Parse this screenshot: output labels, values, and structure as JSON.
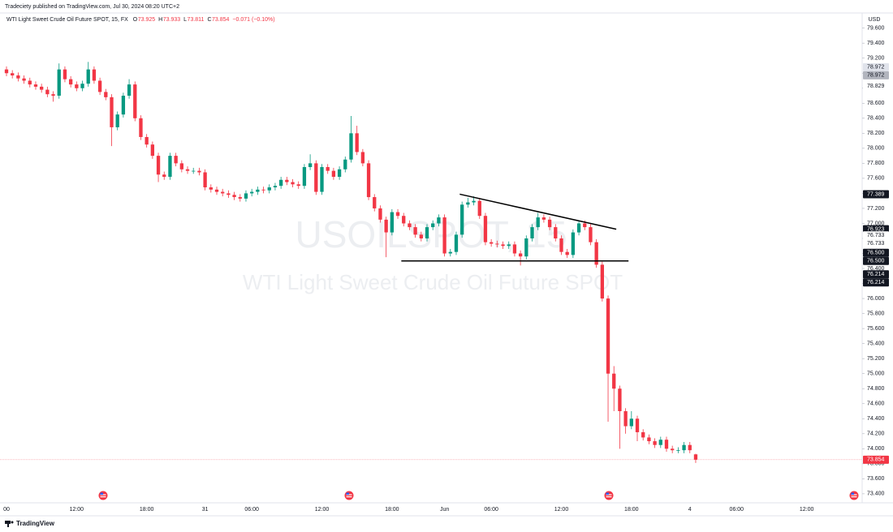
{
  "chart_data": {
    "type": "candlestick",
    "publisher_line": "Tradeciety published on TradingView.com, Jul 30, 2024 08:20 UTC+2",
    "title": "WTI Light Sweet Crude Oil Future SPOT, 15, FX",
    "ohlc_legend": [
      {
        "label": "O",
        "value": 73.925
      },
      {
        "label": "H",
        "value": 73.933
      },
      {
        "label": "L",
        "value": 73.811
      },
      {
        "label": "C",
        "value": 73.854
      }
    ],
    "change_text": "−0.071 (−0.10%)",
    "watermark": [
      "USOILSPOT, 15",
      "WTI Light Sweet Crude Oil Future SPOT"
    ],
    "currency": "USD",
    "brand": "TradingView",
    "up_color": "#089981",
    "down_color": "#f23645",
    "categories": [
      "00",
      null,
      null,
      null,
      null,
      null,
      null,
      null,
      null,
      null,
      null,
      null,
      "12:00",
      null,
      null,
      null,
      null,
      null,
      null,
      null,
      null,
      null,
      null,
      null,
      "18:00",
      null,
      null,
      null,
      null,
      null,
      null,
      null,
      null,
      null,
      "31",
      null,
      null,
      null,
      null,
      null,
      null,
      null,
      "06:00",
      null,
      null,
      null,
      null,
      null,
      null,
      null,
      null,
      null,
      null,
      null,
      "12:00",
      null,
      null,
      null,
      null,
      null,
      null,
      null,
      null,
      null,
      null,
      null,
      "18:00",
      null,
      null,
      null,
      null,
      null,
      null,
      null,
      null,
      "Jun",
      null,
      null,
      null,
      null,
      null,
      null,
      null,
      "06:00",
      null,
      null,
      null,
      null,
      null,
      null,
      null,
      null,
      null,
      null,
      null,
      "12:00",
      null,
      null,
      null,
      null,
      null,
      null,
      null,
      null,
      null,
      null,
      null,
      "18:00",
      null,
      null,
      null,
      null,
      null,
      null,
      null,
      null,
      null,
      "4",
      null,
      null,
      null,
      null,
      null,
      null,
      null,
      "06:00",
      null,
      null,
      null,
      null,
      null,
      null,
      null,
      null,
      null,
      null,
      null,
      "12:00",
      null,
      null,
      null,
      null,
      null,
      null,
      null,
      null,
      null
    ],
    "open": [
      79.05,
      79.0,
      78.97,
      78.93,
      78.9,
      78.85,
      78.82,
      78.78,
      78.72,
      78.7,
      79.05,
      78.92,
      78.85,
      78.8,
      78.86,
      79.05,
      78.9,
      78.75,
      78.68,
      78.28,
      78.45,
      78.7,
      78.85,
      78.4,
      78.15,
      78.05,
      77.9,
      77.65,
      77.62,
      77.9,
      77.8,
      77.72,
      77.7,
      77.7,
      77.68,
      77.48,
      77.45,
      77.42,
      77.4,
      77.38,
      77.35,
      77.33,
      77.4,
      77.42,
      77.45,
      77.44,
      77.48,
      77.5,
      77.58,
      77.55,
      77.52,
      77.5,
      77.75,
      77.8,
      77.42,
      77.75,
      77.7,
      77.62,
      77.72,
      77.85,
      78.2,
      77.95,
      77.8,
      77.35,
      77.2,
      77.05,
      76.88,
      77.15,
      77.1,
      77.0,
      76.95,
      76.85,
      76.8,
      76.95,
      77.0,
      77.08,
      76.6,
      76.62,
      76.85,
      77.25,
      77.28,
      77.3,
      77.1,
      76.75,
      76.73,
      76.72,
      76.7,
      76.72,
      76.6,
      76.56,
      76.8,
      76.95,
      77.08,
      77.05,
      76.95,
      76.8,
      76.62,
      76.58,
      76.88,
      77.0,
      76.95,
      76.75,
      76.45,
      76.0,
      75.0,
      74.8,
      74.5,
      74.3,
      74.4,
      74.22,
      74.15,
      74.1,
      74.05,
      74.12,
      74.0,
      73.98,
      73.98,
      74.05,
      73.925,
      null,
      null,
      null,
      null,
      null,
      null,
      null,
      null,
      null,
      null,
      null,
      null,
      null,
      null,
      null,
      null,
      null,
      null,
      null,
      null,
      null,
      null,
      null,
      null,
      null,
      null,
      null,
      null
    ],
    "high": [
      79.09,
      79.04,
      79.01,
      78.97,
      78.94,
      78.89,
      78.86,
      78.82,
      78.76,
      79.13,
      79.09,
      78.96,
      78.89,
      78.9,
      79.15,
      79.09,
      78.94,
      78.79,
      78.72,
      78.49,
      78.74,
      78.92,
      78.89,
      78.44,
      78.19,
      78.09,
      77.94,
      77.69,
      77.94,
      77.94,
      77.84,
      77.76,
      77.74,
      77.74,
      77.72,
      77.52,
      77.49,
      77.46,
      77.44,
      77.42,
      77.39,
      77.44,
      77.46,
      77.49,
      77.49,
      77.52,
      77.54,
      77.62,
      77.62,
      77.59,
      77.56,
      77.79,
      77.92,
      77.84,
      77.79,
      77.79,
      77.74,
      77.76,
      77.89,
      78.43,
      78.3,
      77.99,
      77.84,
      77.39,
      77.24,
      77.09,
      77.19,
      77.19,
      77.14,
      77.04,
      76.99,
      76.89,
      76.99,
      77.04,
      77.12,
      77.12,
      76.66,
      76.89,
      77.29,
      77.34,
      77.36,
      77.34,
      77.14,
      76.79,
      76.77,
      76.76,
      76.76,
      76.76,
      76.64,
      76.84,
      76.99,
      77.14,
      77.12,
      77.09,
      76.99,
      76.84,
      76.66,
      76.92,
      77.04,
      77.04,
      76.99,
      76.79,
      76.49,
      76.04,
      75.1,
      74.84,
      74.54,
      74.5,
      74.44,
      74.26,
      74.19,
      74.14,
      74.16,
      74.16,
      74.04,
      74.02,
      74.09,
      74.09,
      73.933,
      null,
      null,
      null,
      null,
      null,
      null,
      null,
      null,
      null,
      null,
      null,
      null,
      null,
      null,
      null,
      null,
      null,
      null,
      null,
      null,
      null,
      null,
      null,
      null,
      null,
      null,
      null,
      null
    ],
    "low": [
      78.96,
      78.93,
      78.89,
      78.86,
      78.81,
      78.78,
      78.74,
      78.68,
      78.62,
      78.66,
      78.88,
      78.81,
      78.76,
      78.76,
      78.82,
      78.86,
      78.71,
      78.64,
      78.03,
      78.24,
      78.41,
      78.66,
      78.36,
      78.11,
      78.01,
      77.86,
      77.55,
      77.58,
      77.58,
      77.76,
      77.68,
      77.66,
      77.66,
      77.64,
      77.44,
      77.41,
      77.38,
      77.36,
      77.34,
      77.31,
      77.29,
      77.29,
      77.36,
      77.38,
      77.4,
      77.4,
      77.44,
      77.46,
      77.51,
      77.48,
      77.46,
      77.46,
      77.71,
      77.38,
      77.38,
      77.66,
      77.58,
      77.58,
      77.68,
      77.81,
      77.91,
      77.76,
      77.31,
      77.16,
      77.01,
      76.55,
      76.84,
      77.06,
      76.96,
      76.91,
      76.81,
      76.76,
      76.76,
      76.91,
      76.96,
      76.56,
      76.56,
      76.58,
      76.81,
      77.21,
      77.24,
      77.06,
      76.71,
      76.69,
      76.68,
      76.66,
      76.66,
      76.56,
      76.44,
      76.52,
      76.76,
      76.91,
      77.01,
      76.91,
      76.76,
      76.58,
      76.54,
      76.54,
      76.84,
      76.91,
      76.71,
      76.41,
      75.96,
      74.36,
      74.5,
      74.0,
      74.2,
      74.26,
      74.1,
      74.11,
      74.06,
      74.01,
      74.01,
      73.96,
      73.94,
      73.94,
      73.94,
      73.94,
      73.811,
      null,
      null,
      null,
      null,
      null,
      null,
      null,
      null,
      null,
      null,
      null,
      null,
      null,
      null,
      null,
      null,
      null,
      null,
      null,
      null,
      null,
      null,
      null,
      null,
      null,
      null,
      null,
      null
    ],
    "close": [
      79.0,
      78.97,
      78.93,
      78.9,
      78.85,
      78.82,
      78.78,
      78.72,
      78.7,
      79.05,
      78.92,
      78.85,
      78.8,
      78.86,
      79.05,
      78.9,
      78.75,
      78.68,
      78.28,
      78.45,
      78.7,
      78.85,
      78.4,
      78.15,
      78.05,
      77.9,
      77.65,
      77.62,
      77.9,
      77.8,
      77.72,
      77.7,
      77.7,
      77.68,
      77.48,
      77.45,
      77.42,
      77.4,
      77.38,
      77.35,
      77.33,
      77.4,
      77.42,
      77.45,
      77.44,
      77.48,
      77.5,
      77.58,
      77.55,
      77.52,
      77.5,
      77.75,
      77.8,
      77.42,
      77.75,
      77.7,
      77.62,
      77.72,
      77.85,
      78.2,
      77.95,
      77.8,
      77.35,
      77.2,
      77.05,
      76.88,
      77.15,
      77.1,
      77.0,
      76.95,
      76.85,
      76.8,
      76.95,
      77.0,
      77.08,
      76.6,
      76.62,
      76.85,
      77.25,
      77.28,
      77.3,
      77.1,
      76.75,
      76.73,
      76.72,
      76.7,
      76.72,
      76.6,
      76.56,
      76.8,
      76.95,
      77.08,
      77.05,
      76.95,
      76.8,
      76.62,
      76.58,
      76.88,
      77.0,
      76.95,
      76.75,
      76.45,
      76.0,
      75.0,
      74.8,
      74.5,
      74.3,
      74.4,
      74.22,
      74.15,
      74.1,
      74.05,
      74.12,
      74.0,
      73.98,
      73.98,
      74.05,
      73.98,
      73.854,
      null,
      null,
      null,
      null,
      null,
      null,
      null,
      null,
      null,
      null,
      null,
      null,
      null,
      null,
      null,
      null,
      null,
      null,
      null,
      null,
      null,
      null,
      null,
      null,
      null,
      null,
      null,
      null
    ],
    "ylim": [
      73.28,
      79.78
    ],
    "yticks": [
      {
        "value": 79.6,
        "label": "79.600"
      },
      {
        "value": 79.4,
        "label": "79.400"
      },
      {
        "value": 79.2,
        "label": "79.200"
      },
      {
        "value": 79.0,
        "label": "79.000"
      },
      {
        "value": 78.8,
        "label": "78.800"
      },
      {
        "value": 78.6,
        "label": "78.600"
      },
      {
        "value": 78.4,
        "label": "78.400"
      },
      {
        "value": 78.2,
        "label": "78.200"
      },
      {
        "value": 78.0,
        "label": "78.000"
      },
      {
        "value": 77.8,
        "label": "77.800"
      },
      {
        "value": 77.6,
        "label": "77.600"
      },
      {
        "value": 77.4,
        "label": "77.400"
      },
      {
        "value": 77.2,
        "label": "77.200"
      },
      {
        "value": 77.0,
        "label": "77.000"
      },
      {
        "value": 76.8,
        "label": "76.800"
      },
      {
        "value": 76.6,
        "label": "76.600"
      },
      {
        "value": 76.4,
        "label": "76.400"
      },
      {
        "value": 76.2,
        "label": "76.200"
      },
      {
        "value": 76.0,
        "label": "76.000"
      },
      {
        "value": 75.8,
        "label": "75.800"
      },
      {
        "value": 75.6,
        "label": "75.600"
      },
      {
        "value": 75.4,
        "label": "75.400"
      },
      {
        "value": 75.2,
        "label": "75.200"
      },
      {
        "value": 75.0,
        "label": "75.000"
      },
      {
        "value": 74.8,
        "label": "74.800"
      },
      {
        "value": 74.6,
        "label": "74.600"
      },
      {
        "value": 74.4,
        "label": "74.400"
      },
      {
        "value": 74.2,
        "label": "74.200"
      },
      {
        "value": 74.0,
        "label": "74.000"
      },
      {
        "value": 73.8,
        "label": "73.800"
      },
      {
        "value": 73.6,
        "label": "73.600"
      },
      {
        "value": 73.4,
        "label": "73.400"
      }
    ],
    "price_markers": [
      {
        "value": 78.972,
        "label": "78.972",
        "style": "light"
      },
      {
        "value": 78.972,
        "label": "78.972",
        "style": "gray"
      },
      {
        "value": 78.829,
        "label": "78.829",
        "style": "plain"
      },
      {
        "value": 77.389,
        "label": "77.389",
        "style": "dark"
      },
      {
        "value": 76.923,
        "label": "76.923",
        "style": "dark"
      },
      {
        "value": 76.733,
        "label": "76.733",
        "style": "plain"
      },
      {
        "value": 76.733,
        "label": "76.733",
        "style": "plain"
      },
      {
        "value": 76.5,
        "label": "76.500",
        "style": "dark"
      },
      {
        "value": 76.5,
        "label": "76.500",
        "style": "dark"
      },
      {
        "value": 76.214,
        "label": "76.214",
        "style": "dark"
      },
      {
        "value": 76.214,
        "label": "76.214",
        "style": "dark"
      },
      {
        "value": 73.854,
        "label": "73.854",
        "style": "red"
      }
    ],
    "trendlines": [
      {
        "x": [
          77.6,
          104.4
        ],
        "y": [
          77.389,
          76.923
        ]
      },
      {
        "x": [
          67.6,
          106.5
        ],
        "y": [
          76.5,
          76.5
        ]
      }
    ]
  }
}
